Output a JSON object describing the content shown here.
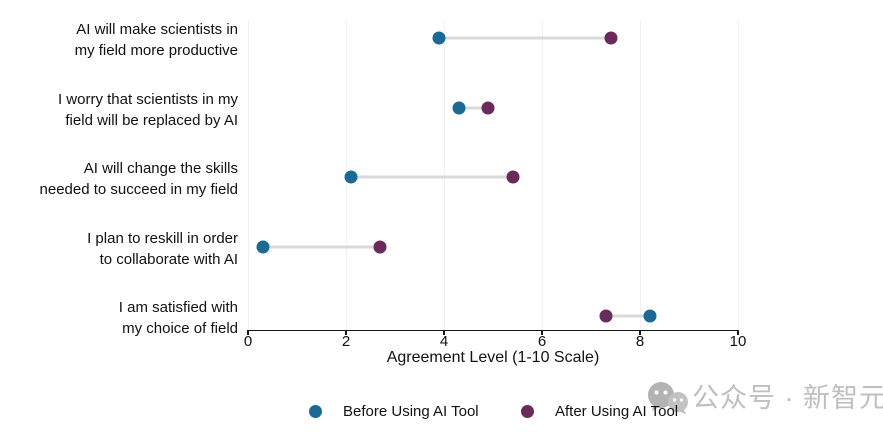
{
  "chart_data": {
    "type": "scatter",
    "subtype": "dumbbell-dot-plot",
    "categories": [
      "AI will make scientists in\nmy field more productive",
      "I worry that scientists in my\nfield will be replaced by AI",
      "AI will change the skills\nneeded to succeed in my field",
      "I plan to reskill in order\nto collaborate with AI",
      "I am satisfied with\nmy choice of field"
    ],
    "series": [
      {
        "name": "Before Using AI Tool",
        "color": "#1b6a96",
        "values": [
          3.9,
          4.3,
          2.1,
          0.3,
          8.2
        ]
      },
      {
        "name": "After Using AI Tool",
        "color": "#6a2a5b",
        "values": [
          7.4,
          4.9,
          5.4,
          2.7,
          7.3
        ]
      }
    ],
    "xlabel": "Agreement Level (1-10 Scale)",
    "xlim": [
      0,
      10
    ],
    "xticks": [
      0,
      2,
      4,
      6,
      8,
      10
    ],
    "grid": true,
    "legend_position": "bottom"
  },
  "colors": {
    "connector": "#d9d9d9",
    "gridline": "#f1f1f1",
    "axis": "#1a1a1a",
    "watermark": "#bfbfbf"
  },
  "watermark": {
    "text": "公众号 · 新智元",
    "icon": "wechat-chat-bubbles-icon"
  }
}
